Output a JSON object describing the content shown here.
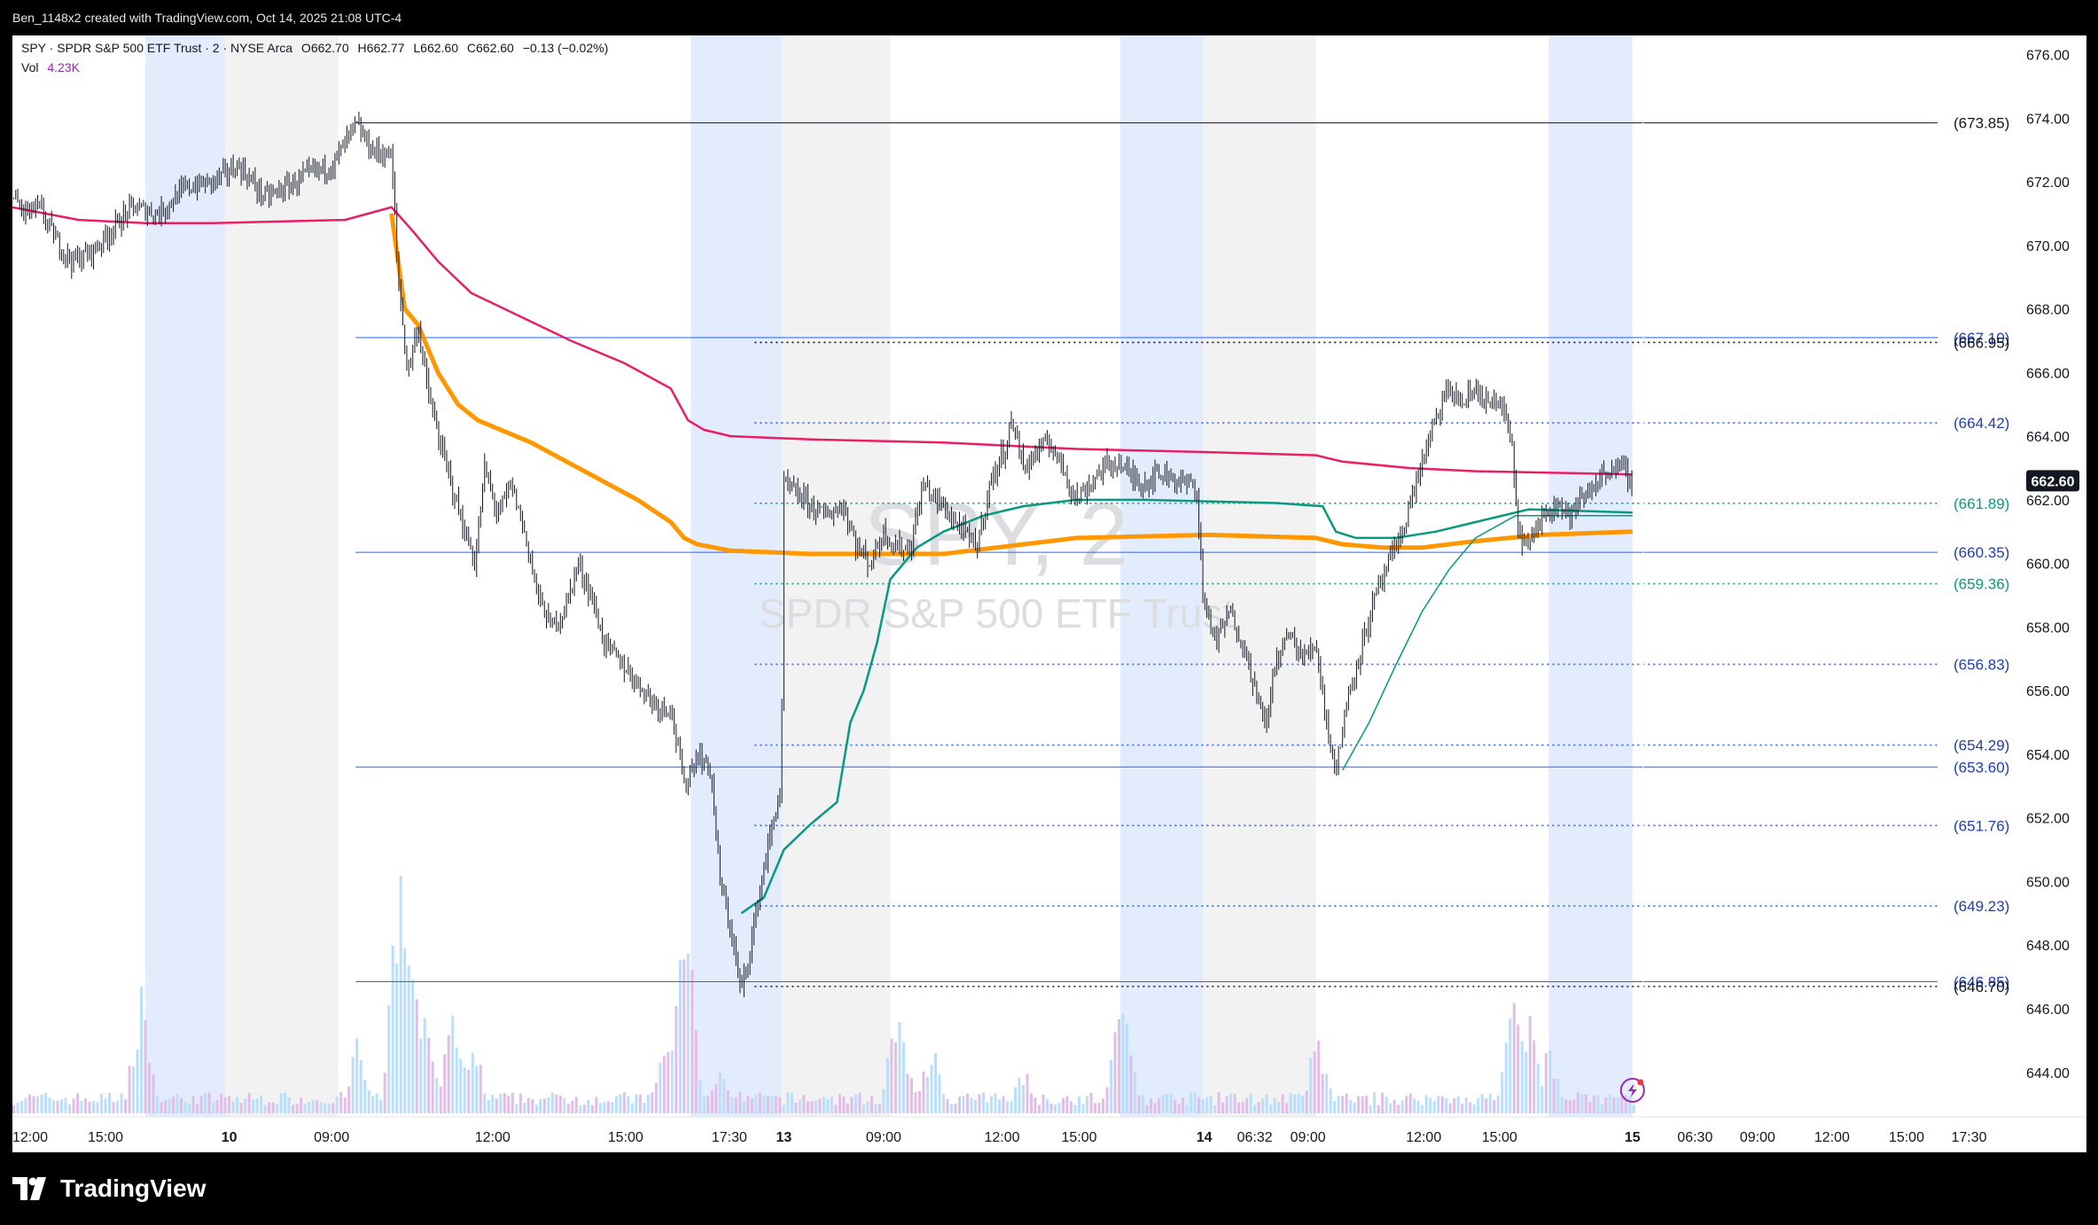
{
  "header": {
    "attribution": "Ben_1148x2 created with TradingView.com, Oct 14, 2025 21:08 UTC-4"
  },
  "legend": {
    "symbol_line": "SPY · SPDR S&P 500 ETF Trust · 2 · NYSE Arca",
    "open_label": "O",
    "open": "662.70",
    "high_label": "H",
    "high": "662.77",
    "low_label": "L",
    "low": "662.60",
    "close_label": "C",
    "close": "662.60",
    "change": "−0.13 (−0.02%)",
    "volume_label": "Vol",
    "volume": "4.23K"
  },
  "watermark": {
    "symbol": "SPY, 2",
    "name": "SPDR S&P 500 ETF Trust"
  },
  "footer": {
    "brand": "TradingView"
  },
  "colors": {
    "candle": "#131722",
    "vwap_red": "#e91e63",
    "ma_orange": "#ff9800",
    "avwap_teal": "#089981",
    "level_blue": "#2962ff",
    "level_green": "#089981",
    "vol_pink": "#e1bee7",
    "vol_blue": "#bbdefb",
    "session_blue": "#e3ecfd",
    "session_gray": "#f2f2f2"
  },
  "chart_data": {
    "type": "candlestick",
    "interval": "2",
    "y_axis": {
      "min": 642.6,
      "max": 676.6,
      "ticks": [
        644,
        646,
        648,
        650,
        652,
        654,
        656,
        658,
        660,
        662,
        664,
        666,
        668,
        670,
        672,
        674,
        676
      ],
      "position": "right"
    },
    "x_axis": {
      "tick_labels": [
        {
          "t": 0,
          "label": "12:00"
        },
        {
          "t": 70,
          "label": "15:00"
        },
        {
          "t": 163,
          "label": "10"
        },
        {
          "t": 240,
          "label": "09:00"
        },
        {
          "t": 361,
          "label": "12:00"
        },
        {
          "t": 461,
          "label": "15:00"
        },
        {
          "t": 539,
          "label": "17:30"
        },
        {
          "t": 580,
          "label": "13"
        },
        {
          "t": 655,
          "label": "09:00"
        },
        {
          "t": 744,
          "label": "12:00"
        },
        {
          "t": 802,
          "label": "15:00"
        },
        {
          "t": 896,
          "label": "14"
        },
        {
          "t": 934,
          "label": "06:32"
        },
        {
          "t": 974,
          "label": "09:00"
        },
        {
          "t": 1061,
          "label": "12:00"
        },
        {
          "t": 1118,
          "label": "15:00"
        },
        {
          "t": 1218,
          "label": "15"
        },
        {
          "t": 1265,
          "label": "06:30"
        },
        {
          "t": 1312,
          "label": "09:00"
        },
        {
          "t": 1368,
          "label": "12:00"
        },
        {
          "t": 1424,
          "label": "15:00"
        },
        {
          "t": 1471,
          "label": "17:30"
        }
      ]
    },
    "last_price": "662.60",
    "price_path": [
      [
        0,
        671.5
      ],
      [
        10,
        671.0
      ],
      [
        20,
        671.2
      ],
      [
        35,
        670.0
      ],
      [
        45,
        669.5
      ],
      [
        60,
        669.8
      ],
      [
        75,
        670.5
      ],
      [
        90,
        671.2
      ],
      [
        110,
        671.0
      ],
      [
        130,
        671.8
      ],
      [
        150,
        672.0
      ],
      [
        170,
        672.5
      ],
      [
        190,
        671.5
      ],
      [
        205,
        671.8
      ],
      [
        225,
        672.3
      ],
      [
        240,
        672.5
      ],
      [
        250,
        673.2
      ],
      [
        258,
        673.8
      ],
      [
        270,
        673.0
      ],
      [
        285,
        672.8
      ],
      [
        290,
        669.0
      ],
      [
        297,
        666.0
      ],
      [
        305,
        667.5
      ],
      [
        312,
        665.5
      ],
      [
        320,
        664.0
      ],
      [
        330,
        662.5
      ],
      [
        340,
        661.0
      ],
      [
        348,
        660.0
      ],
      [
        355,
        663.0
      ],
      [
        365,
        661.5
      ],
      [
        375,
        662.5
      ],
      [
        385,
        661.0
      ],
      [
        395,
        659.0
      ],
      [
        405,
        658.0
      ],
      [
        415,
        658.5
      ],
      [
        425,
        660.0
      ],
      [
        435,
        659.0
      ],
      [
        445,
        657.5
      ],
      [
        455,
        657.0
      ],
      [
        465,
        656.5
      ],
      [
        475,
        656.0
      ],
      [
        485,
        655.5
      ],
      [
        495,
        655.5
      ],
      [
        505,
        653.0
      ],
      [
        515,
        654.0
      ],
      [
        525,
        653.5
      ],
      [
        532,
        650.0
      ],
      [
        540,
        648.5
      ],
      [
        548,
        646.5
      ],
      [
        555,
        648.0
      ],
      [
        563,
        650.0
      ],
      [
        570,
        651.5
      ],
      [
        578,
        653.0
      ],
      [
        580,
        662.5
      ],
      [
        595,
        662.0
      ],
      [
        610,
        661.5
      ],
      [
        625,
        661.8
      ],
      [
        635,
        660.5
      ],
      [
        645,
        660.0
      ],
      [
        655,
        661.0
      ],
      [
        665,
        660.5
      ],
      [
        675,
        660.5
      ],
      [
        685,
        662.5
      ],
      [
        695,
        662.0
      ],
      [
        705,
        661.5
      ],
      [
        715,
        661.0
      ],
      [
        725,
        660.5
      ],
      [
        735,
        662.5
      ],
      [
        745,
        663.5
      ],
      [
        752,
        664.5
      ],
      [
        760,
        663.0
      ],
      [
        770,
        663.5
      ],
      [
        780,
        663.8
      ],
      [
        790,
        663.0
      ],
      [
        800,
        662.0
      ],
      [
        810,
        662.5
      ],
      [
        820,
        663.0
      ],
      [
        830,
        663.2
      ],
      [
        840,
        662.8
      ],
      [
        850,
        662.5
      ],
      [
        860,
        662.8
      ],
      [
        870,
        662.8
      ],
      [
        880,
        662.5
      ],
      [
        890,
        662.5
      ],
      [
        895,
        659.0
      ],
      [
        905,
        657.5
      ],
      [
        915,
        658.5
      ],
      [
        925,
        657.5
      ],
      [
        935,
        656.0
      ],
      [
        942,
        654.8
      ],
      [
        950,
        657.0
      ],
      [
        960,
        657.8
      ],
      [
        970,
        657.0
      ],
      [
        980,
        657.5
      ],
      [
        988,
        655.0
      ],
      [
        995,
        653.5
      ],
      [
        1005,
        656.0
      ],
      [
        1015,
        657.5
      ],
      [
        1025,
        659.0
      ],
      [
        1035,
        660.0
      ],
      [
        1045,
        661.0
      ],
      [
        1055,
        662.5
      ],
      [
        1062,
        663.5
      ],
      [
        1070,
        664.5
      ],
      [
        1080,
        665.5
      ],
      [
        1090,
        665.0
      ],
      [
        1100,
        665.5
      ],
      [
        1110,
        665.0
      ],
      [
        1120,
        665.0
      ],
      [
        1128,
        663.5
      ],
      [
        1132,
        661.0
      ],
      [
        1140,
        660.5
      ],
      [
        1150,
        661.5
      ],
      [
        1160,
        662.0
      ],
      [
        1170,
        661.5
      ],
      [
        1180,
        662.0
      ],
      [
        1190,
        662.5
      ],
      [
        1200,
        663.0
      ],
      [
        1210,
        663.0
      ],
      [
        1218,
        662.6
      ]
    ],
    "vwap_red": [
      [
        0,
        671.2
      ],
      [
        50,
        670.8
      ],
      [
        100,
        670.7
      ],
      [
        150,
        670.7
      ],
      [
        250,
        670.8
      ],
      [
        285,
        671.2
      ],
      [
        300,
        670.5
      ],
      [
        320,
        669.5
      ],
      [
        345,
        668.5
      ],
      [
        380,
        667.8
      ],
      [
        420,
        667.0
      ],
      [
        460,
        666.3
      ],
      [
        495,
        665.5
      ],
      [
        508,
        664.5
      ],
      [
        520,
        664.2
      ],
      [
        540,
        664.0
      ],
      [
        600,
        663.9
      ],
      [
        700,
        663.8
      ],
      [
        800,
        663.6
      ],
      [
        900,
        663.5
      ],
      [
        980,
        663.4
      ],
      [
        1000,
        663.2
      ],
      [
        1050,
        663.0
      ],
      [
        1100,
        662.9
      ],
      [
        1218,
        662.8
      ]
    ],
    "ma_orange": [
      [
        285,
        671.0
      ],
      [
        295,
        668.0
      ],
      [
        305,
        667.5
      ],
      [
        320,
        666.0
      ],
      [
        335,
        665.0
      ],
      [
        350,
        664.5
      ],
      [
        390,
        663.8
      ],
      [
        430,
        662.9
      ],
      [
        470,
        662.0
      ],
      [
        495,
        661.3
      ],
      [
        505,
        660.8
      ],
      [
        515,
        660.6
      ],
      [
        540,
        660.4
      ],
      [
        600,
        660.3
      ],
      [
        700,
        660.3
      ],
      [
        760,
        660.6
      ],
      [
        800,
        660.8
      ],
      [
        900,
        660.9
      ],
      [
        980,
        660.8
      ],
      [
        1000,
        660.6
      ],
      [
        1030,
        660.5
      ],
      [
        1060,
        660.5
      ],
      [
        1100,
        660.7
      ],
      [
        1150,
        660.9
      ],
      [
        1218,
        661.0
      ]
    ],
    "avwap_teal": [
      [
        548,
        649.0
      ],
      [
        565,
        649.5
      ],
      [
        580,
        651.0
      ],
      [
        600,
        651.8
      ],
      [
        620,
        652.5
      ],
      [
        630,
        655.0
      ],
      [
        640,
        656.0
      ],
      [
        650,
        657.5
      ],
      [
        660,
        659.5
      ],
      [
        680,
        660.5
      ],
      [
        700,
        661.0
      ],
      [
        730,
        661.5
      ],
      [
        760,
        661.8
      ],
      [
        800,
        662.0
      ],
      [
        850,
        662.0
      ],
      [
        950,
        661.9
      ],
      [
        985,
        661.8
      ],
      [
        995,
        661.0
      ],
      [
        1010,
        660.8
      ],
      [
        1040,
        660.8
      ],
      [
        1070,
        661.0
      ],
      [
        1100,
        661.3
      ],
      [
        1140,
        661.7
      ],
      [
        1218,
        661.6
      ]
    ],
    "avwap_teal_2": [
      [
        1000,
        653.5
      ],
      [
        1020,
        655.0
      ],
      [
        1040,
        656.8
      ],
      [
        1060,
        658.5
      ],
      [
        1080,
        659.8
      ],
      [
        1100,
        660.8
      ],
      [
        1130,
        661.5
      ],
      [
        1218,
        661.5
      ]
    ],
    "levels": [
      {
        "price": 673.85,
        "label": "(673.85)",
        "color": "#131722",
        "style": "solid",
        "from": 258
      },
      {
        "price": 667.1,
        "label": "(667.10)",
        "color": "#2962ff",
        "style": "solid",
        "from": 258
      },
      {
        "price": 666.95,
        "label": "(666.95)",
        "color": "#131722",
        "style": "dotted",
        "from": 558
      },
      {
        "price": 664.42,
        "label": "(664.42)",
        "color": "#2962ff",
        "style": "dotted",
        "from": 558
      },
      {
        "price": 661.89,
        "label": "(661.89)",
        "color": "#089981",
        "style": "dotted",
        "from": 558
      },
      {
        "price": 660.35,
        "label": "(660.35)",
        "color": "#2962ff",
        "style": "solid",
        "from": 258
      },
      {
        "price": 659.36,
        "label": "(659.36)",
        "color": "#089981",
        "style": "dotted",
        "from": 558
      },
      {
        "price": 656.83,
        "label": "(656.83)",
        "color": "#2962ff",
        "style": "dotted",
        "from": 558
      },
      {
        "price": 654.29,
        "label": "(654.29)",
        "color": "#2962ff",
        "style": "dotted",
        "from": 558
      },
      {
        "price": 653.6,
        "label": "(653.60)",
        "color": "#2962ff",
        "style": "solid",
        "from": 258
      },
      {
        "price": 651.76,
        "label": "(651.76)",
        "color": "#2962ff",
        "style": "dotted",
        "from": 558
      },
      {
        "price": 649.23,
        "label": "(649.23)",
        "color": "#2962ff",
        "style": "dotted",
        "from": 558
      },
      {
        "price": 646.85,
        "label": "(646.85)",
        "color": "#2962ff",
        "style": "solid",
        "from": 258
      },
      {
        "price": 646.7,
        "label": "(646.70)",
        "color": "#131722",
        "style": "dotted",
        "from": 558
      }
    ],
    "sessions": [
      {
        "from": 100,
        "to": 160,
        "type": "blue"
      },
      {
        "from": 160,
        "to": 245,
        "type": "gray"
      },
      {
        "from": 510,
        "to": 578,
        "type": "blue"
      },
      {
        "from": 578,
        "to": 660,
        "type": "gray"
      },
      {
        "from": 833,
        "to": 895,
        "type": "blue"
      },
      {
        "from": 895,
        "to": 980,
        "type": "gray"
      },
      {
        "from": 1155,
        "to": 1218,
        "type": "blue"
      }
    ],
    "volume_spikes": [
      {
        "t": 96,
        "v": 0.5
      },
      {
        "t": 258,
        "v": 0.3
      },
      {
        "t": 290,
        "v": 1.0
      },
      {
        "t": 300,
        "v": 0.75
      },
      {
        "t": 310,
        "v": 0.55
      },
      {
        "t": 330,
        "v": 0.45
      },
      {
        "t": 345,
        "v": 0.35
      },
      {
        "t": 490,
        "v": 0.3
      },
      {
        "t": 505,
        "v": 1.0
      },
      {
        "t": 508,
        "v": 0.5
      },
      {
        "t": 530,
        "v": 0.2
      },
      {
        "t": 665,
        "v": 0.5
      },
      {
        "t": 690,
        "v": 0.3
      },
      {
        "t": 760,
        "v": 0.2
      },
      {
        "t": 833,
        "v": 0.55
      },
      {
        "t": 980,
        "v": 0.35
      },
      {
        "t": 1128,
        "v": 0.6
      },
      {
        "t": 1140,
        "v": 0.45
      },
      {
        "t": 1155,
        "v": 0.3
      }
    ]
  }
}
